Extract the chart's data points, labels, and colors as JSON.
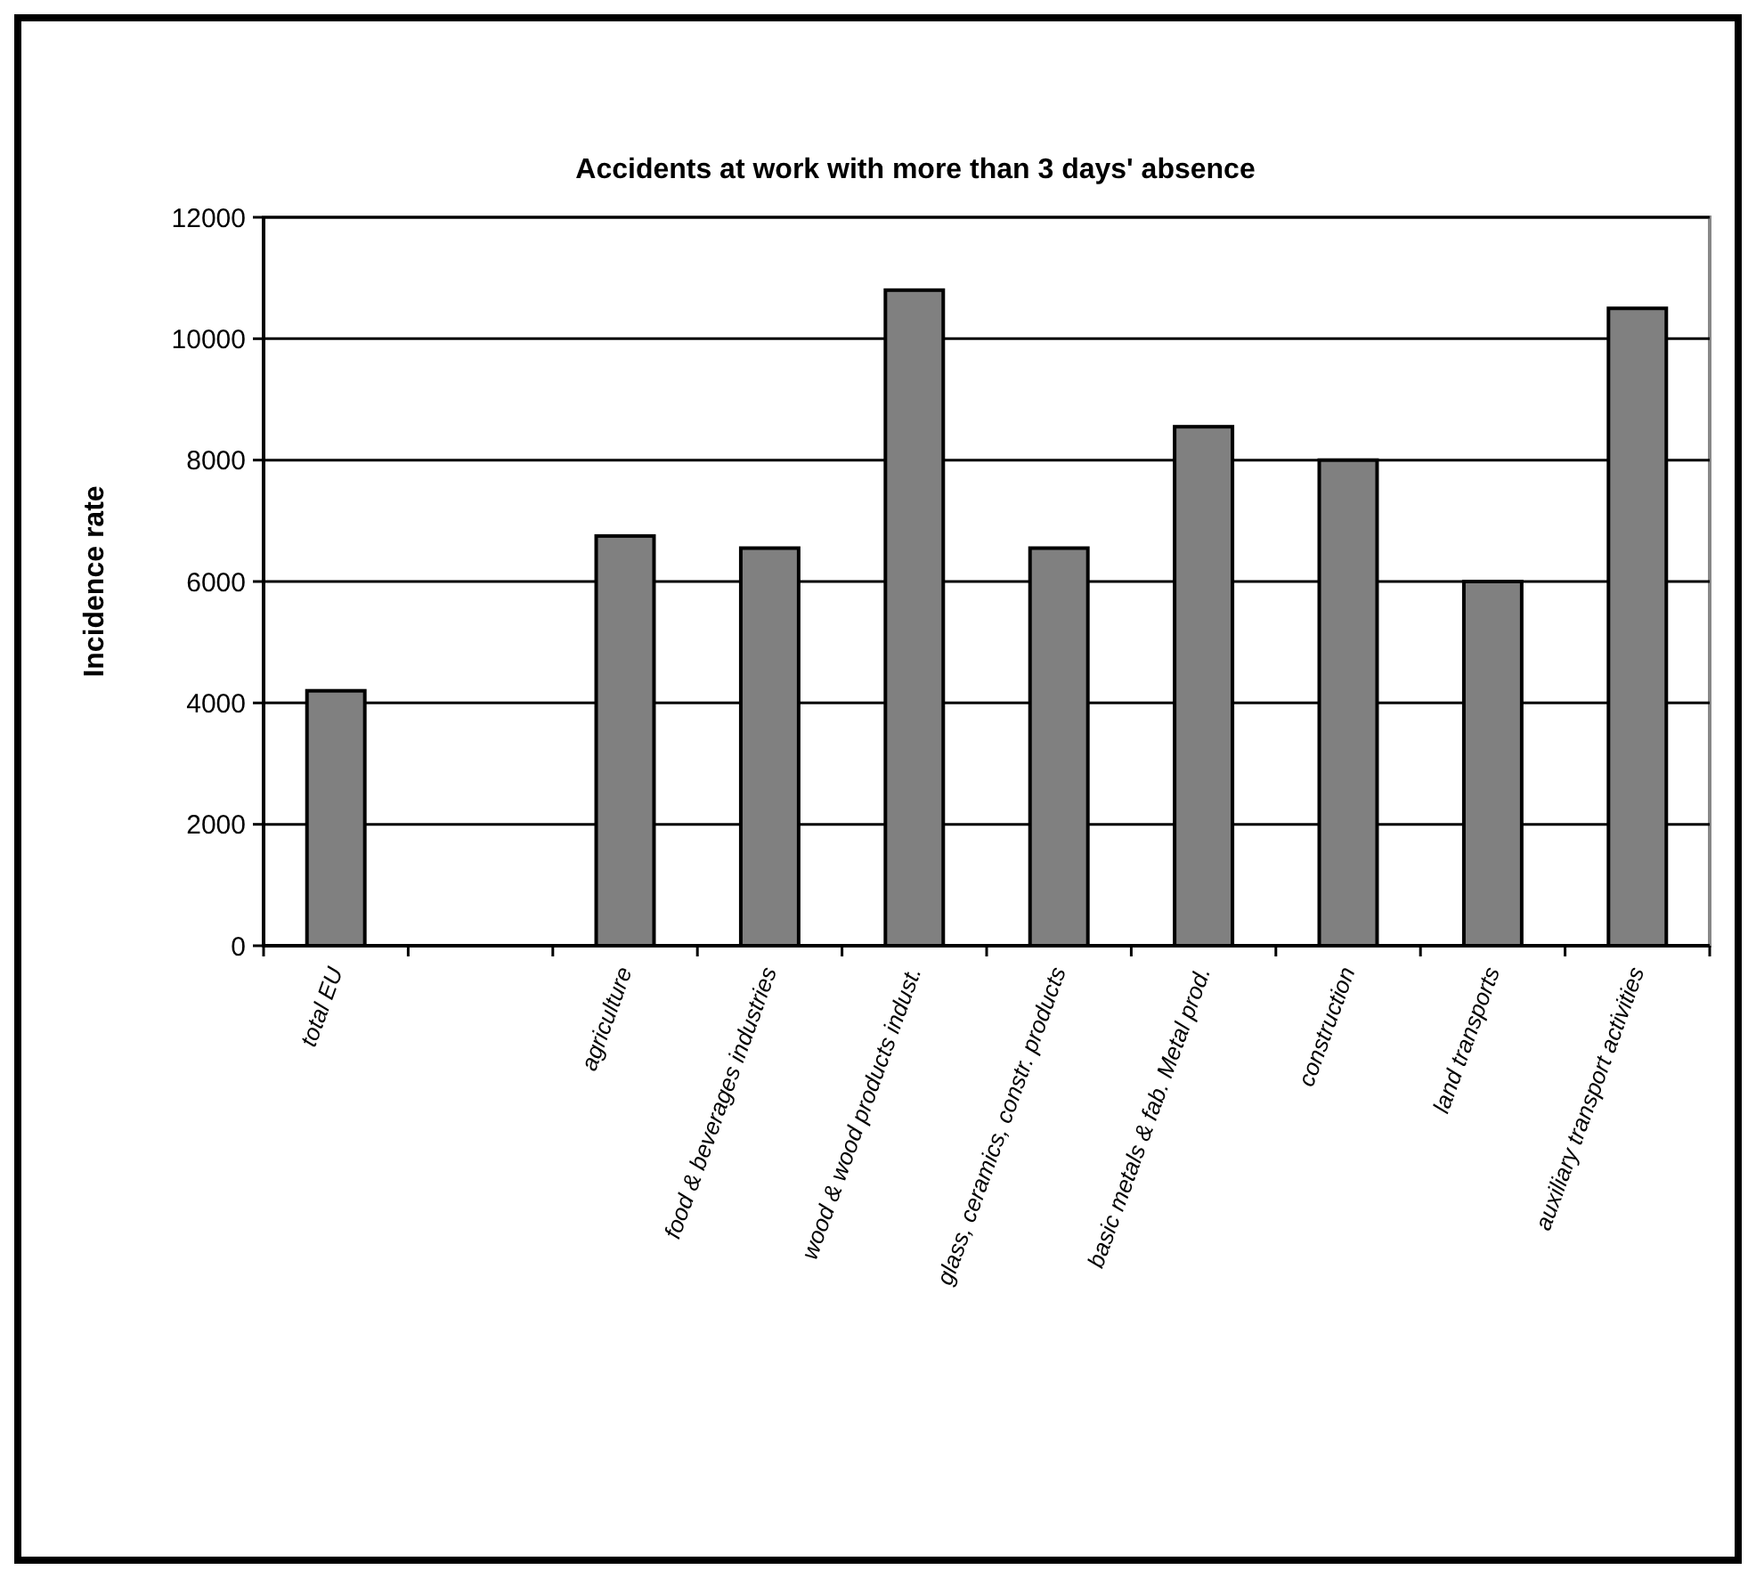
{
  "chart_data": {
    "type": "bar",
    "title": "Accidents at work with more than 3 days' absence",
    "ylabel": "Incidence rate",
    "categories": [
      "total EU",
      null,
      "agriculture",
      "food & beverages industries",
      "wood & wood products indust.",
      "glass, ceramics, constr. products",
      "basic metals & fab. Metal prod.",
      "construction",
      "land transports",
      "auxiliary transport activities"
    ],
    "values": [
      4200,
      null,
      6750,
      6550,
      10800,
      6550,
      8550,
      8000,
      6000,
      10500
    ],
    "color": "#808080",
    "ylim": [
      0,
      12000
    ],
    "yticks": [
      0,
      2000,
      4000,
      6000,
      8000,
      10000,
      12000
    ],
    "grid": "y"
  }
}
